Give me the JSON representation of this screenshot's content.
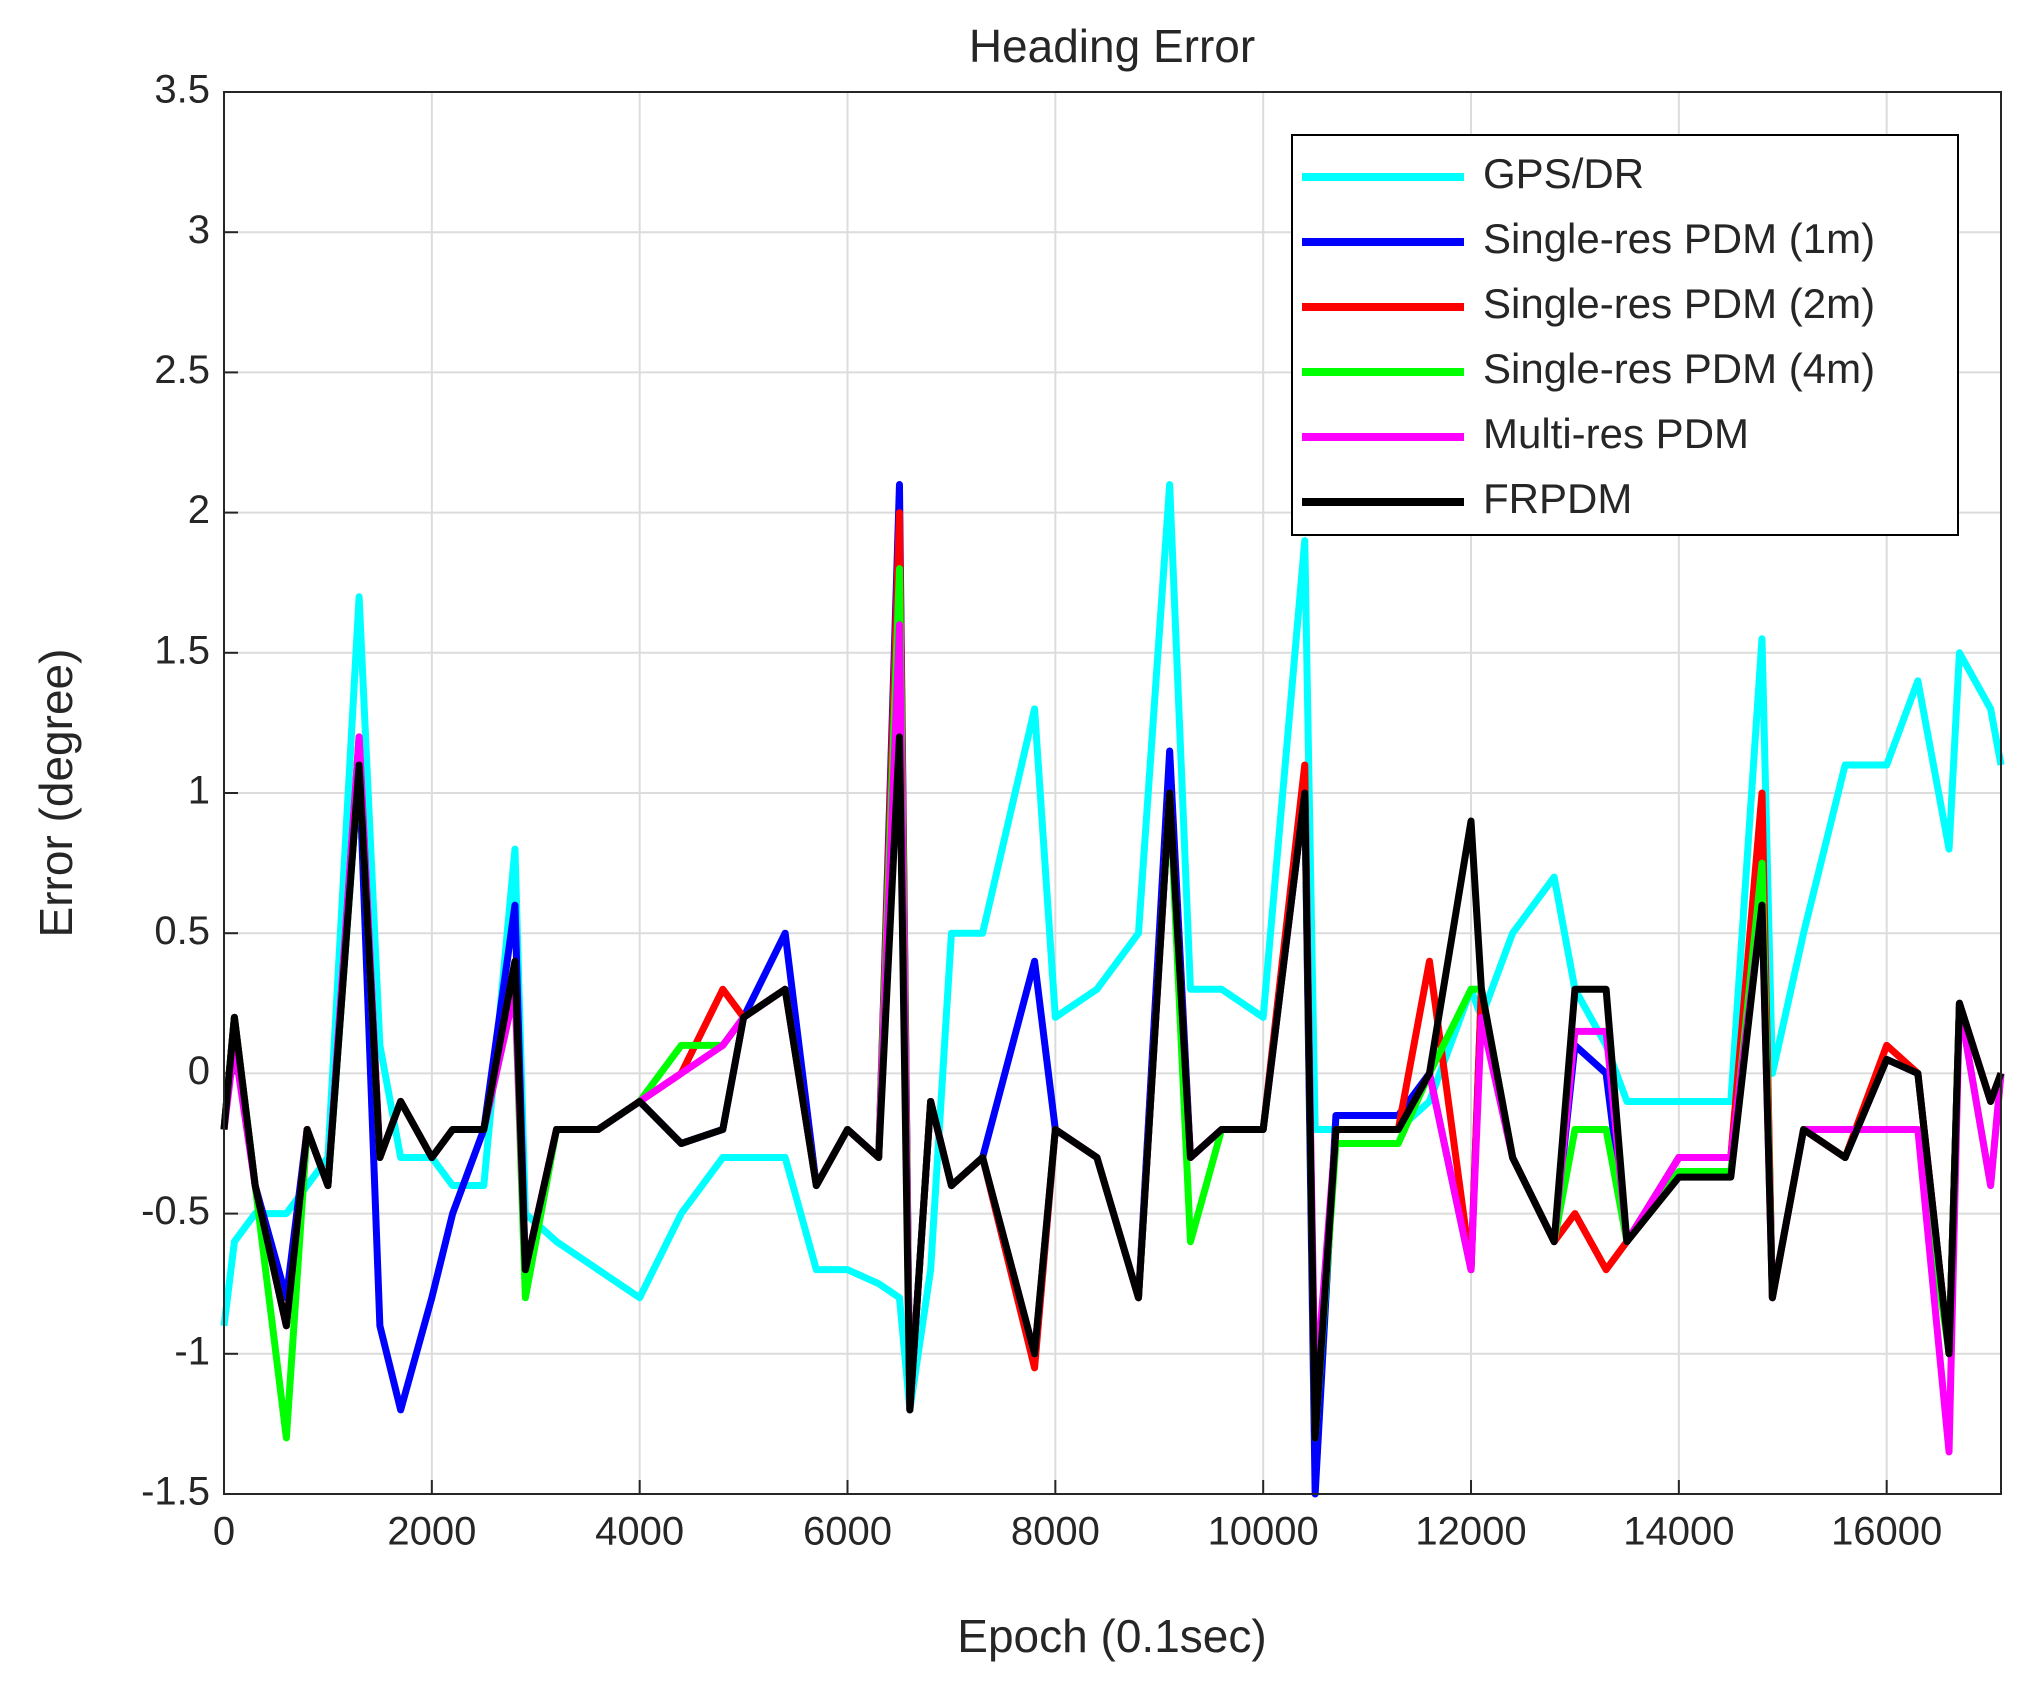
{
  "chart_data": {
    "type": "line",
    "title": "Heading Error",
    "x_label": "Epoch (0.1sec)",
    "y_label": "Error (degree)",
    "xlim": [
      0,
      17100
    ],
    "ylim": [
      -1.5,
      3.5
    ],
    "xticks": [
      0,
      2000,
      4000,
      6000,
      8000,
      10000,
      12000,
      14000,
      16000
    ],
    "yticks": [
      -1.5,
      -1,
      -0.5,
      0,
      0.5,
      1,
      1.5,
      2,
      2.5,
      3,
      3.5
    ],
    "grid": true,
    "legend": "upper-right",
    "x": [
      0,
      100,
      300,
      600,
      800,
      1000,
      1300,
      1500,
      1700,
      2000,
      2200,
      2500,
      2800,
      2900,
      3200,
      3600,
      4000,
      4400,
      4800,
      5000,
      5400,
      5700,
      6000,
      6300,
      6500,
      6600,
      6800,
      7000,
      7300,
      7800,
      8000,
      8400,
      8800,
      9100,
      9300,
      9600,
      10000,
      10400,
      10500,
      10700,
      11000,
      11300,
      11600,
      12000,
      12100,
      12400,
      12800,
      13000,
      13300,
      13500,
      14000,
      14500,
      14800,
      14900,
      15200,
      15600,
      16000,
      16300,
      16600,
      16700,
      17000,
      17100
    ],
    "series": [
      {
        "name": "GPS/DR",
        "color": "#00ffff",
        "values": [
          -0.9,
          -0.6,
          -0.5,
          -0.5,
          -0.4,
          -0.3,
          1.7,
          0.1,
          -0.3,
          -0.3,
          -0.4,
          -0.4,
          0.8,
          -0.5,
          -0.6,
          -0.7,
          -0.8,
          -0.5,
          -0.3,
          -0.3,
          -0.3,
          -0.7,
          -0.7,
          -0.75,
          -0.8,
          -1.2,
          -0.7,
          0.5,
          0.5,
          1.3,
          0.2,
          0.3,
          0.5,
          2.1,
          0.3,
          0.3,
          0.2,
          1.9,
          -0.2,
          -0.2,
          -0.2,
          -0.2,
          -0.1,
          0.3,
          0.2,
          0.5,
          0.7,
          0.3,
          0.1,
          -0.1,
          -0.1,
          -0.1,
          1.55,
          0.0,
          0.5,
          1.1,
          1.1,
          1.4,
          0.8,
          1.5,
          1.3,
          1.1
        ]
      },
      {
        "name": "Single-res PDM (1m)",
        "color": "#0000ff",
        "values": [
          -0.2,
          0.2,
          -0.4,
          -0.8,
          -0.2,
          -0.4,
          1.1,
          -0.9,
          -1.2,
          -0.8,
          -0.5,
          -0.2,
          0.6,
          -0.7,
          -0.2,
          -0.2,
          -0.1,
          -0.25,
          -0.2,
          0.2,
          0.5,
          -0.4,
          -0.2,
          -0.3,
          2.1,
          -1.2,
          -0.1,
          -0.4,
          -0.3,
          0.4,
          -0.2,
          -0.3,
          -0.8,
          1.15,
          -0.3,
          -0.2,
          -0.2,
          1.0,
          -1.5,
          -0.15,
          -0.15,
          -0.15,
          0.0,
          -0.7,
          0.3,
          -0.3,
          -0.6,
          0.1,
          0.0,
          -0.6,
          -0.3,
          -0.3,
          0.9,
          -0.8,
          -0.2,
          -0.3,
          0.05,
          0.0,
          -1.0,
          0.25,
          -0.1,
          0.0
        ]
      },
      {
        "name": "Single-res PDM (2m)",
        "color": "#ff0000",
        "values": [
          -0.2,
          0.2,
          -0.4,
          -0.9,
          -0.2,
          -0.4,
          1.2,
          -0.3,
          -0.1,
          -0.3,
          -0.2,
          -0.2,
          0.4,
          -0.7,
          -0.2,
          -0.2,
          -0.1,
          0.0,
          0.3,
          0.2,
          0.3,
          -0.4,
          -0.2,
          -0.3,
          2.0,
          -1.2,
          -0.1,
          -0.4,
          -0.3,
          -1.05,
          -0.2,
          -0.3,
          -0.8,
          1.0,
          -0.3,
          -0.2,
          -0.2,
          1.1,
          -1.3,
          -0.2,
          -0.2,
          -0.2,
          0.4,
          -0.7,
          0.3,
          -0.3,
          -0.6,
          -0.5,
          -0.7,
          -0.6,
          -0.3,
          -0.3,
          1.0,
          -0.8,
          -0.2,
          -0.3,
          0.1,
          0.0,
          -1.0,
          0.25,
          -0.1,
          0.0
        ]
      },
      {
        "name": "Single-res PDM (4m)",
        "color": "#00ff00",
        "values": [
          -0.2,
          0.2,
          -0.4,
          -1.3,
          -0.2,
          -0.4,
          1.1,
          -0.3,
          -0.1,
          -0.3,
          -0.2,
          -0.2,
          0.3,
          -0.8,
          -0.2,
          -0.2,
          -0.1,
          0.1,
          0.1,
          0.2,
          0.3,
          -0.4,
          -0.2,
          -0.3,
          1.8,
          -1.2,
          -0.1,
          -0.4,
          -0.3,
          -1.0,
          -0.2,
          -0.3,
          -0.8,
          1.0,
          -0.6,
          -0.2,
          -0.2,
          1.0,
          -1.3,
          -0.25,
          -0.25,
          -0.25,
          0.0,
          0.3,
          0.3,
          -0.3,
          -0.6,
          -0.2,
          -0.2,
          -0.6,
          -0.35,
          -0.35,
          0.75,
          -0.8,
          -0.2,
          -0.2,
          -0.2,
          -0.2,
          -1.0,
          0.25,
          -0.4,
          0.0
        ]
      },
      {
        "name": "Multi-res PDM",
        "color": "#ff00ff",
        "values": [
          -0.2,
          0.1,
          -0.4,
          -0.9,
          -0.2,
          -0.4,
          1.2,
          -0.3,
          -0.1,
          -0.3,
          -0.2,
          -0.2,
          0.3,
          -0.7,
          -0.2,
          -0.2,
          -0.1,
          0.0,
          0.1,
          0.2,
          0.3,
          -0.4,
          -0.2,
          -0.3,
          1.6,
          -1.2,
          -0.1,
          -0.4,
          -0.3,
          -1.0,
          -0.2,
          -0.3,
          -0.8,
          1.0,
          -0.3,
          -0.2,
          -0.2,
          1.0,
          -1.15,
          -0.2,
          -0.2,
          -0.2,
          0.0,
          -0.7,
          0.2,
          -0.3,
          -0.6,
          0.15,
          0.15,
          -0.6,
          -0.3,
          -0.3,
          0.6,
          -0.8,
          -0.2,
          -0.2,
          -0.2,
          -0.2,
          -1.35,
          0.25,
          -0.4,
          0.0
        ]
      },
      {
        "name": "FRPDM",
        "color": "#000000",
        "values": [
          -0.2,
          0.2,
          -0.4,
          -0.9,
          -0.2,
          -0.4,
          1.1,
          -0.3,
          -0.1,
          -0.3,
          -0.2,
          -0.2,
          0.4,
          -0.7,
          -0.2,
          -0.2,
          -0.1,
          -0.25,
          -0.2,
          0.2,
          0.3,
          -0.4,
          -0.2,
          -0.3,
          1.2,
          -1.2,
          -0.1,
          -0.4,
          -0.3,
          -1.0,
          -0.2,
          -0.3,
          -0.8,
          1.0,
          -0.3,
          -0.2,
          -0.2,
          1.0,
          -1.3,
          -0.2,
          -0.2,
          -0.2,
          0.0,
          0.9,
          0.3,
          -0.3,
          -0.6,
          0.3,
          0.3,
          -0.6,
          -0.37,
          -0.37,
          0.6,
          -0.8,
          -0.2,
          -0.3,
          0.05,
          0.0,
          -1.0,
          0.25,
          -0.1,
          0.0
        ]
      }
    ]
  }
}
